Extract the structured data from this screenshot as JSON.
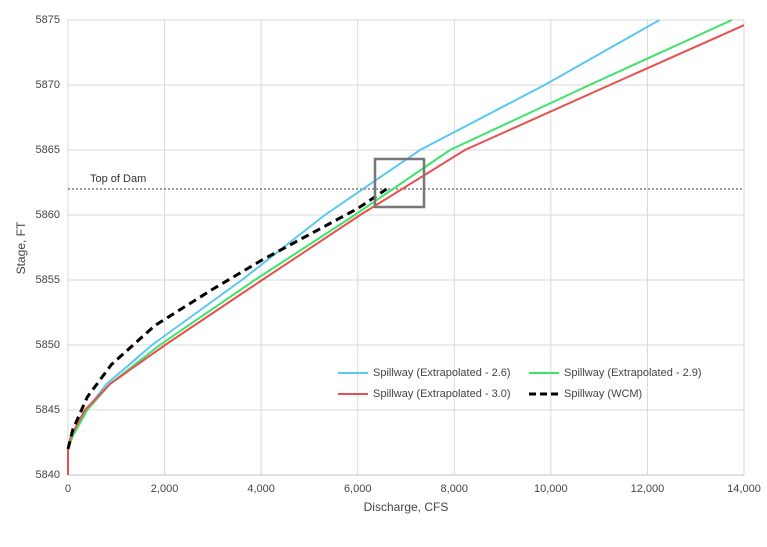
{
  "chart_data": {
    "type": "line",
    "xlabel": "Discharge, CFS",
    "ylabel": "Stage, FT",
    "xlim": [
      0,
      14000
    ],
    "ylim": [
      5840,
      5875
    ],
    "xticks": [
      0,
      {
        "value": 2000,
        "label": "2,000"
      },
      {
        "value": 4000,
        "label": "4,000"
      },
      {
        "value": 6000,
        "label": "6,000"
      },
      {
        "value": 8000,
        "label": "8,000"
      },
      {
        "value": 10000,
        "label": "10,000"
      },
      {
        "value": 12000,
        "label": "12,000"
      },
      {
        "value": 14000,
        "label": "14,000"
      }
    ],
    "yticks": [
      5840,
      5845,
      5850,
      5855,
      5860,
      5865,
      5870,
      5875
    ],
    "grid": true,
    "legend": "lower right",
    "hline": {
      "value": 5862,
      "label": "Top of Dam",
      "color": "#666666"
    },
    "series": [
      {
        "name": "Spillway (Extrapolated - 2.6)",
        "color": "#5bc8f0",
        "dash": false,
        "x": [
          0,
          80,
          380,
          800,
          1740,
          3600,
          5320,
          7290,
          9870,
          12250
        ],
        "values": [
          5842,
          5843,
          5845,
          5847,
          5850,
          5855,
          5860,
          5865,
          5870,
          5875
        ]
      },
      {
        "name": "Spillway (Extrapolated - 2.9)",
        "color": "#3ee36b",
        "dash": false,
        "x": [
          0,
          100,
          400,
          870,
          1900,
          3870,
          5940,
          7910,
          10800,
          13750
        ],
        "values": [
          5842,
          5843,
          5845,
          5847,
          5850,
          5855,
          5860,
          5865,
          5870,
          5875
        ]
      },
      {
        "name": "Spillway (Extrapolated - 3.0)",
        "color": "#e8504f",
        "dash": false,
        "x": [
          0,
          0,
          60,
          350,
          870,
          2010,
          4020,
          6050,
          8220,
          11220,
          14000
        ],
        "values": [
          5840,
          5842,
          5843,
          5845,
          5847,
          5850,
          5855,
          5860,
          5865,
          5870,
          5874.6
        ]
      },
      {
        "name": "Spillway (WCM)",
        "color": "#000000",
        "dash": true,
        "x": [
          0,
          100,
          400,
          900,
          1800,
          3000,
          4000,
          5000,
          6000,
          6600
        ],
        "values": [
          5842,
          5843.5,
          5846,
          5848.5,
          5851.5,
          5854.3,
          5856.5,
          5858.5,
          5860.5,
          5862
        ]
      }
    ]
  }
}
